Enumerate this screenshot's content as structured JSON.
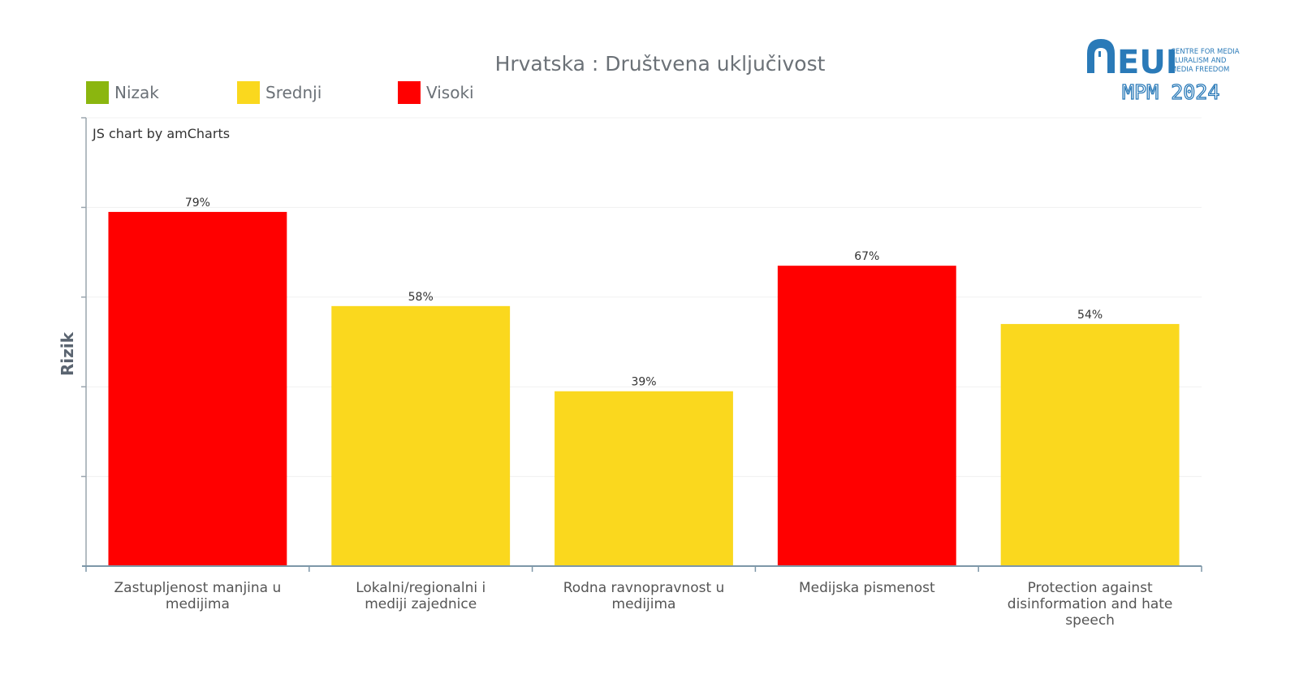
{
  "chart_data": {
    "type": "bar",
    "title": "Hrvatska : Društvena uključivost",
    "ylabel": "Rizik",
    "xlabel": "",
    "ylim": [
      0,
      100
    ],
    "credit": "JS chart by amCharts",
    "legend": [
      {
        "label": "Nizak",
        "color": "#8bb60f"
      },
      {
        "label": "Srednji",
        "color": "#fad81e"
      },
      {
        "label": "Visoki",
        "color": "#ff0000"
      }
    ],
    "categories": [
      [
        "Zastupljenost manjina u",
        "medijima"
      ],
      [
        "Lokalni/regionalni i",
        "mediji zajednice"
      ],
      [
        "Rodna ravnopravnost u",
        "medijima"
      ],
      [
        "Medijska pismenost"
      ],
      [
        "Protection against",
        "disinformation and hate",
        "speech"
      ]
    ],
    "values": [
      79,
      58,
      39,
      67,
      54
    ],
    "value_labels": [
      "79%",
      "58%",
      "39%",
      "67%",
      "54%"
    ],
    "risk_levels": [
      "Visoki",
      "Srednji",
      "Srednji",
      "Visoki",
      "Srednji"
    ]
  },
  "logo": {
    "main": "EUI",
    "lines": [
      "CENTRE FOR MEDIA",
      "PLURALISM AND",
      "MEDIA FREEDOM"
    ],
    "edition": "MPM 2024"
  }
}
